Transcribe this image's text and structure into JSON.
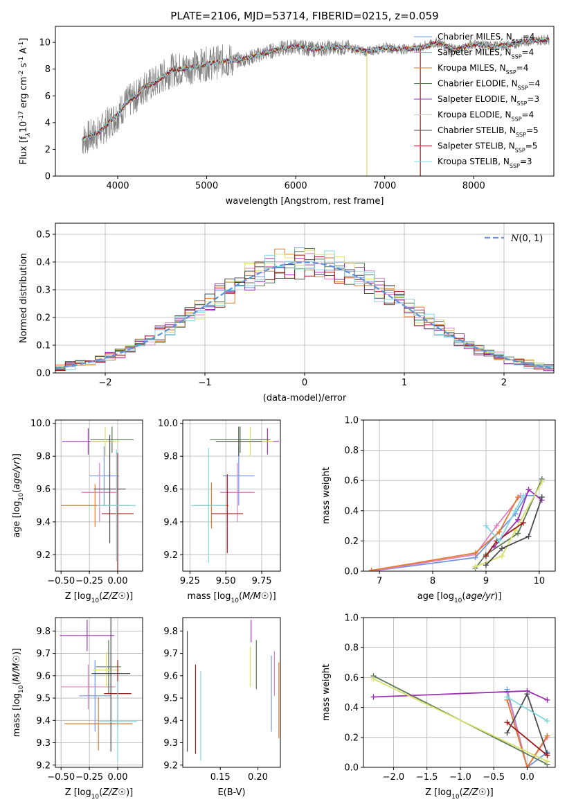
{
  "figure_title": "PLATE=2106, MJD=53714, FIBERID=0215, z=0.059",
  "series_colors": [
    "#7096e0",
    "#e080c0",
    "#e07a30",
    "#5a7a55",
    "#9a30b0",
    "#d8e068",
    "#4a4a50",
    "#a01818",
    "#80d8e0"
  ],
  "chart_data": [
    {
      "panel": "spectrum",
      "type": "line",
      "xlabel": "wavelength [Angstrom, rest frame]",
      "ylabel_parts": [
        "Flux [f",
        "λ",
        "10",
        "-17",
        " erg cm",
        "-2",
        " s",
        "-1",
        " A",
        "-1",
        "]"
      ],
      "xlim": [
        3300,
        8900
      ],
      "ylim": [
        0,
        11.2
      ],
      "xticks": [
        4000,
        5000,
        6000,
        7000,
        8000
      ],
      "yticks": [
        0,
        2,
        4,
        6,
        8,
        10
      ],
      "grid": false,
      "legend_position": "right",
      "data_color": "#808080",
      "model_color": "#70d8d8",
      "series": [
        {
          "label": "Chabrier MILES, ",
          "nssp": "4",
          "color": "#7096e0"
        },
        {
          "label": "Salpeter MILES, ",
          "nssp": "4",
          "color": "#e080c0"
        },
        {
          "label": "Kroupa MILES, ",
          "nssp": "4",
          "color": "#e07a30"
        },
        {
          "label": "Chabrier ELODIE, ",
          "nssp": "4",
          "color": "#5a7a55"
        },
        {
          "label": "Salpeter ELODIE, ",
          "nssp": "3",
          "color": "#9a30b0"
        },
        {
          "label": "Kroupa ELODIE, ",
          "nssp": "4",
          "color": "#d8e068"
        },
        {
          "label": "Chabrier STELIB, ",
          "nssp": "5",
          "color": "#4a4a50"
        },
        {
          "label": "Salpeter STELIB, ",
          "nssp": "5",
          "color": "#a01818"
        },
        {
          "label": "Kroupa STELIB, ",
          "nssp": "3",
          "color": "#80d8e0"
        }
      ],
      "nssp_prefix": "N",
      "nssp_sub": "SSP",
      "continuum": {
        "x": [
          3600,
          3700,
          3800,
          3900,
          4000,
          4100,
          4200,
          4300,
          4400,
          4500,
          4600,
          4800,
          5000,
          5200,
          5400,
          5600,
          5800,
          6000,
          6200,
          6400,
          6600,
          6800,
          7000,
          7200,
          7400,
          7600,
          7800,
          8000,
          8200,
          8400,
          8600,
          8800
        ],
        "y": [
          2.7,
          3.0,
          3.3,
          4.0,
          4.6,
          5.5,
          5.9,
          6.7,
          6.9,
          7.4,
          7.9,
          8.1,
          8.4,
          8.6,
          8.7,
          9.1,
          9.5,
          9.7,
          9.5,
          9.6,
          9.6,
          9.3,
          9.6,
          9.5,
          9.6,
          10.0,
          9.4,
          9.9,
          9.7,
          9.8,
          10.1,
          10.2
        ]
      }
    },
    {
      "panel": "residual-histogram",
      "type": "bar",
      "xlabel": "(data-model)/error",
      "ylabel": "Normed distribution",
      "xlim": [
        -2.5,
        2.5
      ],
      "ylim": [
        0,
        0.54
      ],
      "xticks": [
        -2,
        -1,
        0,
        1,
        2
      ],
      "yticks": [
        0.0,
        0.1,
        0.2,
        0.3,
        0.4,
        0.5
      ],
      "grid": true,
      "legend_position": "top-right",
      "legend_label": "N(0, 1)",
      "gaussian_color": "#6090d8",
      "bin_width": 0.1
    },
    {
      "panel": "age-vs-metallicity",
      "type": "scatter",
      "xlabel": "Z [log10(Z/Z☉)]",
      "ylabel": "age  [log10(age/yr)]",
      "xlim": [
        -0.55,
        0.22
      ],
      "ylim": [
        9.1,
        10.02
      ],
      "xticks": [
        -0.5,
        -0.25,
        0.0
      ],
      "yticks": [
        9.2,
        9.4,
        9.6,
        9.8,
        10.0
      ],
      "grid": true,
      "points": [
        {
          "x": -0.12,
          "xerr": 0.13,
          "y": 9.68,
          "yerr": 0.18,
          "color": "#7096e0"
        },
        {
          "x": -0.16,
          "xerr": 0.16,
          "y": 9.58,
          "yerr": 0.18,
          "color": "#e080c0"
        },
        {
          "x": -0.2,
          "xerr": 0.3,
          "y": 9.5,
          "yerr": 0.13,
          "color": "#e07a30"
        },
        {
          "x": -0.05,
          "xerr": 0.19,
          "y": 9.9,
          "yerr": 0.08,
          "color": "#5a7a55"
        },
        {
          "x": -0.26,
          "xerr": 0.23,
          "y": 9.89,
          "yerr": 0.08,
          "color": "#9a30b0"
        },
        {
          "x": -0.11,
          "xerr": 0.13,
          "y": 9.89,
          "yerr": 0.09,
          "color": "#d8e068"
        },
        {
          "x": -0.07,
          "xerr": 0.14,
          "y": 9.6,
          "yerr": 0.33,
          "color": "#4a4a50"
        },
        {
          "x": 0.0,
          "xerr": 0.14,
          "y": 9.45,
          "yerr": 0.37,
          "color": "#a01818"
        },
        {
          "x": -0.01,
          "xerr": 0.17,
          "y": 9.5,
          "yerr": 0.34,
          "color": "#80d8e0"
        }
      ]
    },
    {
      "panel": "age-vs-mass",
      "type": "scatter",
      "xlabel": "mass [log10(M/M☉)]",
      "ylabel": "",
      "xlim": [
        9.2,
        9.88
      ],
      "ylim": [
        9.1,
        10.02
      ],
      "xticks": [
        9.25,
        9.5,
        9.75
      ],
      "yticks": [
        9.2,
        9.4,
        9.6,
        9.8,
        10.0
      ],
      "grid": true,
      "points": [
        {
          "x": 9.59,
          "xerr": 0.11,
          "y": 9.68,
          "yerr": 0.18,
          "color": "#7096e0"
        },
        {
          "x": 9.58,
          "xerr": 0.12,
          "y": 9.58,
          "yerr": 0.18,
          "color": "#e080c0"
        },
        {
          "x": 9.4,
          "xerr": 0.12,
          "y": 9.5,
          "yerr": 0.14,
          "color": "#e07a30"
        },
        {
          "x": 9.6,
          "xerr": 0.21,
          "y": 9.9,
          "yerr": 0.08,
          "color": "#5a7a55"
        },
        {
          "x": 9.79,
          "xerr": 0.08,
          "y": 9.89,
          "yerr": 0.08,
          "color": "#9a30b0"
        },
        {
          "x": 9.67,
          "xerr": 0.16,
          "y": 9.89,
          "yerr": 0.09,
          "color": "#d8e068"
        },
        {
          "x": 9.59,
          "xerr": 0.16,
          "y": 9.89,
          "yerr": 0.09,
          "color": "#4a4a50"
        },
        {
          "x": 9.51,
          "xerr": 0.11,
          "y": 9.45,
          "yerr": 0.24,
          "color": "#a01818"
        },
        {
          "x": 9.38,
          "xerr": 0.12,
          "y": 9.5,
          "yerr": 0.35,
          "color": "#80d8e0"
        }
      ]
    },
    {
      "panel": "mass-weight-vs-age",
      "type": "line",
      "xlabel": "age  [log10(age/yr)]",
      "ylabel": "mass weight",
      "xlim": [
        6.7,
        10.3
      ],
      "ylim": [
        0,
        1.0
      ],
      "xticks": [
        7,
        8,
        9,
        10
      ],
      "yticks": [
        0.0,
        0.2,
        0.4,
        0.6,
        0.8,
        1.0
      ],
      "grid": true,
      "series": [
        {
          "x": [
            6.85,
            8.8,
            9.55,
            9.75,
            9.9
          ],
          "y": [
            0.0,
            0.09,
            0.38,
            0.5,
            0.5
          ],
          "color": "#7096e0"
        },
        {
          "x": [
            6.85,
            8.8,
            9.2,
            9.65
          ],
          "y": [
            0.0,
            0.11,
            0.3,
            0.5
          ],
          "color": "#e080c0"
        },
        {
          "x": [
            6.85,
            8.8,
            9.25,
            9.6
          ],
          "y": [
            0.005,
            0.12,
            0.26,
            0.49
          ],
          "color": "#e07a30"
        },
        {
          "x": [
            8.8,
            9.0,
            9.6,
            10.05
          ],
          "y": [
            0.02,
            0.11,
            0.25,
            0.61
          ],
          "color": "#5a7a55"
        },
        {
          "x": [
            9.15,
            9.6,
            9.8,
            10.05
          ],
          "y": [
            0.16,
            0.34,
            0.54,
            0.47
          ],
          "color": "#9a30b0"
        },
        {
          "x": [
            8.8,
            9.3,
            9.55,
            10.05
          ],
          "y": [
            0.03,
            0.1,
            0.27,
            0.59
          ],
          "color": "#d8e068"
        },
        {
          "x": [
            9.0,
            9.3,
            9.8,
            10.05
          ],
          "y": [
            0.04,
            0.15,
            0.23,
            0.49
          ],
          "color": "#4a4a50"
        },
        {
          "x": [
            9.0,
            9.2,
            9.7
          ],
          "y": [
            0.1,
            0.2,
            0.32
          ],
          "color": "#a01818"
        },
        {
          "x": [
            9.0,
            9.25,
            9.55,
            9.7
          ],
          "y": [
            0.3,
            0.2,
            0.4,
            0.5
          ],
          "color": "#80d8e0"
        }
      ]
    },
    {
      "panel": "mass-vs-metallicity",
      "type": "scatter",
      "xlabel": "Z [log10(Z/Z☉)]",
      "ylabel": "mass [log10(M/M☉)]",
      "xlim": [
        -0.55,
        0.22
      ],
      "ylim": [
        9.19,
        9.86
      ],
      "xticks": [
        -0.5,
        -0.25,
        0.0
      ],
      "yticks": [
        9.2,
        9.3,
        9.4,
        9.5,
        9.6,
        9.7,
        9.8
      ],
      "grid": true,
      "points": [
        {
          "x": -0.2,
          "xerr": 0.14,
          "y": 9.51,
          "yerr": 0.16,
          "color": "#7096e0"
        },
        {
          "x": -0.26,
          "xerr": 0.24,
          "y": 9.55,
          "yerr": 0.1,
          "color": "#e080c0"
        },
        {
          "x": -0.17,
          "xerr": 0.3,
          "y": 9.385,
          "yerr": 0.12,
          "color": "#e07a30"
        },
        {
          "x": -0.08,
          "xerr": 0.11,
          "y": 9.64,
          "yerr": 0.12,
          "color": "#5a7a55"
        },
        {
          "x": -0.27,
          "xerr": 0.24,
          "y": 9.78,
          "yerr": 0.07,
          "color": "#9a30b0"
        },
        {
          "x": -0.1,
          "xerr": 0.12,
          "y": 9.625,
          "yerr": 0.08,
          "color": "#d8e068"
        },
        {
          "x": -0.06,
          "xerr": 0.17,
          "y": 9.61,
          "yerr": 0.35,
          "color": "#4a4a50"
        },
        {
          "x": 0.0,
          "xerr": 0.12,
          "y": 9.52,
          "yerr": 0.15,
          "color": "#a01818"
        },
        {
          "x": 0.0,
          "xerr": 0.17,
          "y": 9.395,
          "yerr": 0.18,
          "color": "#80d8e0"
        }
      ]
    },
    {
      "panel": "mass-vs-extinction",
      "type": "scatter",
      "xlabel": "E(B-V)",
      "ylabel": "",
      "xlim": [
        0.1,
        0.23
      ],
      "ylim": [
        9.19,
        9.86
      ],
      "xticks": [
        0.15,
        0.2
      ],
      "yticks": [
        9.2,
        9.3,
        9.4,
        9.5,
        9.6,
        9.7,
        9.8
      ],
      "grid": false,
      "points": [
        {
          "x": 0.218,
          "y": 9.52,
          "yerr": 0.17,
          "color": "#7096e0"
        },
        {
          "x": 0.222,
          "y": 9.61,
          "yerr": 0.1,
          "color": "#e080c0"
        },
        {
          "x": 0.228,
          "y": 9.49,
          "yerr": 0.17,
          "color": "#e07a30"
        },
        {
          "x": 0.198,
          "y": 9.65,
          "yerr": 0.11,
          "color": "#5a7a55"
        },
        {
          "x": 0.191,
          "y": 9.8,
          "yerr": 0.05,
          "color": "#9a30b0"
        },
        {
          "x": 0.19,
          "y": 9.64,
          "yerr": 0.09,
          "color": "#d8e068"
        },
        {
          "x": 0.106,
          "y": 9.53,
          "yerr": 0.27,
          "color": "#4a4a50"
        },
        {
          "x": 0.117,
          "y": 9.45,
          "yerr": 0.2,
          "color": "#a01818"
        },
        {
          "x": 0.124,
          "y": 9.42,
          "yerr": 0.2,
          "color": "#80d8e0"
        }
      ]
    },
    {
      "panel": "mass-weight-vs-metallicity",
      "type": "line",
      "xlabel": "Z [log10(Z/Z☉)]",
      "ylabel": "mass weight",
      "xlim": [
        -2.45,
        0.42
      ],
      "ylim": [
        0,
        1.0
      ],
      "xticks": [
        -2.0,
        -1.5,
        -1.0,
        -0.5,
        0.0
      ],
      "yticks": [
        0.0,
        0.2,
        0.4,
        0.6,
        0.8,
        1.0
      ],
      "grid": true,
      "series": [
        {
          "x": [
            -0.3,
            0.0,
            0.3
          ],
          "y": [
            0.52,
            0.0,
            0.1
          ],
          "color": "#7096e0"
        },
        {
          "x": [
            -0.3,
            0.0,
            0.3
          ],
          "y": [
            0.5,
            0.0,
            0.2
          ],
          "color": "#e080c0"
        },
        {
          "x": [
            -0.3,
            0.0,
            0.3
          ],
          "y": [
            0.45,
            0.0,
            0.21
          ],
          "color": "#e07a30"
        },
        {
          "x": [
            -2.3,
            0.3
          ],
          "y": [
            0.61,
            0.02
          ],
          "color": "#5a7a55"
        },
        {
          "x": [
            -2.3,
            0.0,
            0.3
          ],
          "y": [
            0.47,
            0.51,
            0.45
          ],
          "color": "#9a30b0"
        },
        {
          "x": [
            -2.3,
            0.3
          ],
          "y": [
            0.59,
            0.04
          ],
          "color": "#d8e068"
        },
        {
          "x": [
            -0.3,
            0.0,
            0.3
          ],
          "y": [
            0.23,
            0.49,
            0.09
          ],
          "color": "#4a4a50"
        },
        {
          "x": [
            -0.3,
            0.3
          ],
          "y": [
            0.3,
            0.08
          ],
          "color": "#a01818"
        },
        {
          "x": [
            -0.3,
            0.3
          ],
          "y": [
            0.47,
            0.31
          ],
          "color": "#80d8e0"
        }
      ]
    }
  ]
}
